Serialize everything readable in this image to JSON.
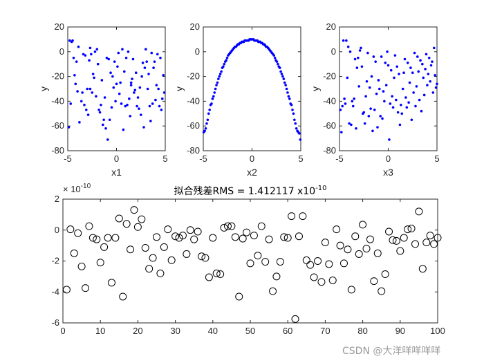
{
  "chart_data": [
    {
      "type": "scatter",
      "xlabel": "x1",
      "ylabel": "y",
      "xlim": [
        -5,
        5
      ],
      "ylim": [
        -80,
        20
      ],
      "xticks": [
        -5,
        0,
        5
      ],
      "yticks": [
        20,
        0,
        -20,
        -40,
        -60,
        -80
      ],
      "marker_color": "#0000ff",
      "x": [
        -4.9,
        -4.8,
        -4.7,
        -4.6,
        -4.5,
        -4.4,
        -4.3,
        -4.2,
        -4.1,
        -4.0,
        -3.9,
        -3.8,
        -3.6,
        -3.5,
        -3.4,
        -3.3,
        -3.2,
        -3.1,
        -3.0,
        -2.9,
        -2.8,
        -2.7,
        -2.6,
        -2.5,
        -2.4,
        -2.3,
        -2.2,
        -2.1,
        -2.0,
        -1.9,
        -1.8,
        -1.7,
        -1.6,
        -1.5,
        -1.4,
        -1.3,
        -1.2,
        -1.1,
        -1.0,
        -0.9,
        -0.8,
        -0.7,
        -0.6,
        -0.5,
        -0.4,
        -0.3,
        -0.2,
        -0.1,
        0.0,
        0.1,
        0.2,
        0.3,
        0.4,
        0.5,
        0.6,
        0.7,
        0.8,
        0.9,
        1.0,
        1.1,
        1.2,
        1.3,
        1.4,
        1.5,
        1.6,
        1.7,
        1.8,
        1.9,
        2.0,
        2.1,
        2.2,
        2.3,
        2.4,
        2.5,
        2.6,
        2.7,
        2.8,
        2.9,
        3.0,
        3.1,
        3.2,
        3.3,
        3.4,
        3.5,
        3.6,
        3.7,
        3.8,
        3.9,
        4.0,
        4.1,
        4.2,
        4.3,
        4.4,
        4.5,
        4.6,
        4.7,
        4.8,
        4.9,
        -2.7,
        1.5
      ],
      "y": [
        -61,
        9,
        -42,
        8,
        9,
        -5,
        -19,
        -26,
        -8,
        -32,
        4,
        -57,
        -40,
        -33,
        -2,
        -43,
        -3,
        -47,
        -30,
        -51,
        -7,
        3,
        -2,
        -33,
        -18,
        -21,
        0,
        -36,
        2,
        -10,
        -47,
        -49,
        -43,
        -23,
        -59,
        -55,
        -37,
        -62,
        -5,
        -71,
        -6,
        -55,
        -17,
        -45,
        -20,
        -29,
        -8,
        -40,
        -26,
        -12,
        -1,
        -34,
        -25,
        -42,
        2,
        -63,
        -16,
        -44,
        -5,
        -43,
        0,
        -38,
        -52,
        -25,
        -22,
        -6,
        -33,
        -31,
        -17,
        -44,
        -37,
        -46,
        -29,
        -51,
        -20,
        -9,
        -61,
        -13,
        2,
        -8,
        -30,
        -18,
        -44,
        -56,
        -1,
        -42,
        -13,
        -8,
        -39,
        -27,
        -2,
        -30,
        -44,
        -5,
        -47,
        -38,
        -19,
        -33,
        -30,
        -27
      ]
    },
    {
      "type": "scatter",
      "xlabel": "x2",
      "ylabel": "y",
      "xlim": [
        -5,
        5
      ],
      "ylim": [
        -80,
        20
      ],
      "xticks": [
        -5,
        0,
        5
      ],
      "yticks": [
        20,
        0,
        -20,
        -40,
        -60,
        -80
      ],
      "marker_color": "#0000ff",
      "x": [
        -4.95,
        -4.85,
        -4.75,
        -4.65,
        -4.55,
        -4.45,
        -4.35,
        -4.25,
        -4.15,
        -4.05,
        -3.95,
        -3.85,
        -3.75,
        -3.65,
        -3.55,
        -3.45,
        -3.35,
        -3.25,
        -3.15,
        -3.05,
        -2.95,
        -2.85,
        -2.75,
        -2.65,
        -2.55,
        -2.45,
        -2.35,
        -2.25,
        -2.15,
        -2.05,
        -1.95,
        -1.85,
        -1.75,
        -1.65,
        -1.55,
        -1.45,
        -1.35,
        -1.25,
        -1.15,
        -1.05,
        -0.95,
        -0.85,
        -0.75,
        -0.65,
        -0.55,
        -0.45,
        -0.35,
        -0.25,
        -0.15,
        -0.05,
        0.05,
        0.15,
        0.25,
        0.35,
        0.45,
        0.55,
        0.65,
        0.75,
        0.85,
        0.95,
        1.05,
        1.15,
        1.25,
        1.35,
        1.45,
        1.55,
        1.65,
        1.75,
        1.85,
        1.95,
        2.05,
        2.15,
        2.25,
        2.35,
        2.45,
        2.55,
        2.65,
        2.75,
        2.85,
        2.95,
        3.05,
        3.15,
        3.25,
        3.35,
        3.45,
        3.55,
        3.65,
        3.75,
        3.85,
        3.95,
        4.05,
        4.15,
        4.25,
        4.35,
        4.45,
        4.55,
        4.65,
        4.75,
        4.85,
        4.95
      ],
      "y": [
        -65,
        -64,
        -62,
        -58,
        -55,
        -50,
        -47,
        -43,
        -42,
        -38,
        -36,
        -33,
        -30,
        -27,
        -25,
        -22,
        -20,
        -18,
        -16,
        -13,
        -12,
        -10,
        -8,
        -7,
        -5,
        -3,
        -2,
        -1,
        0,
        1,
        2,
        3,
        4,
        4,
        5,
        6,
        6,
        7,
        7,
        8,
        8,
        8,
        9,
        9,
        9,
        9,
        9,
        10,
        10,
        10,
        10,
        10,
        9,
        9,
        9,
        9,
        8,
        8,
        8,
        7,
        7,
        6,
        6,
        5,
        4,
        4,
        3,
        2,
        1,
        0,
        -1,
        -2,
        -3,
        -5,
        -7,
        -8,
        -10,
        -12,
        -13,
        -16,
        -18,
        -20,
        -22,
        -25,
        -27,
        -30,
        -33,
        -36,
        -38,
        -42,
        -43,
        -47,
        -50,
        -55,
        -58,
        -62,
        -64,
        -65,
        -66,
        -71
      ]
    },
    {
      "type": "scatter",
      "xlabel": "x3",
      "ylabel": "y",
      "xlim": [
        -5,
        5
      ],
      "ylim": [
        -80,
        20
      ],
      "xticks": [
        -5,
        0,
        5
      ],
      "yticks": [
        20,
        0,
        -20,
        -40,
        -60,
        -80
      ],
      "marker_color": "#0000ff",
      "x": [
        -4.9,
        -4.8,
        -4.7,
        -4.6,
        -4.5,
        -4.4,
        -4.3,
        -4.2,
        -4.1,
        -4.0,
        -3.9,
        -3.8,
        -3.7,
        -3.6,
        -3.5,
        -3.4,
        -3.3,
        -3.2,
        -3.1,
        -3.0,
        -2.9,
        -2.8,
        -2.7,
        -2.6,
        -2.5,
        -2.4,
        -2.3,
        -2.2,
        -2.1,
        -2.0,
        -1.9,
        -1.8,
        -1.7,
        -1.6,
        -1.5,
        -1.4,
        -1.3,
        -1.2,
        -1.1,
        -1.0,
        -0.9,
        -0.8,
        -0.7,
        -0.6,
        -0.5,
        -0.4,
        -0.3,
        -0.2,
        -0.1,
        0.0,
        0.1,
        0.2,
        0.3,
        0.4,
        0.5,
        0.6,
        0.7,
        0.8,
        0.9,
        1.0,
        1.1,
        1.2,
        1.3,
        1.4,
        1.5,
        1.6,
        1.7,
        1.8,
        1.9,
        2.0,
        2.1,
        2.2,
        2.3,
        2.4,
        2.5,
        2.6,
        2.7,
        2.8,
        2.9,
        3.0,
        3.1,
        3.2,
        3.3,
        3.4,
        3.5,
        3.6,
        3.7,
        3.8,
        3.9,
        4.0,
        4.1,
        4.2,
        4.3,
        4.4,
        4.5,
        4.6,
        4.7,
        4.8,
        4.9,
        5.0
      ],
      "y": [
        -47,
        -65,
        -44,
        9,
        -38,
        -42,
        9,
        -21,
        4,
        -58,
        0,
        -59,
        -40,
        -44,
        -38,
        -6,
        -62,
        -13,
        -5,
        -28,
        1,
        3,
        -12,
        -50,
        -49,
        -58,
        -36,
        -24,
        -1,
        -52,
        -29,
        -46,
        -20,
        -64,
        -4,
        -47,
        -8,
        -34,
        -61,
        -23,
        -30,
        -52,
        -4,
        -54,
        -32,
        -40,
        -9,
        -27,
        0,
        -11,
        -71,
        -42,
        -15,
        -36,
        -45,
        -21,
        -3,
        -39,
        -12,
        -49,
        -18,
        -59,
        -43,
        -50,
        -30,
        -17,
        -6,
        -37,
        -45,
        -9,
        -41,
        -25,
        -13,
        -55,
        -17,
        -33,
        -1,
        -44,
        -28,
        -4,
        -16,
        -39,
        -7,
        -48,
        -10,
        -21,
        -35,
        -14,
        -2,
        -27,
        -18,
        -5,
        -24,
        -11,
        -8,
        -33,
        3,
        -19,
        -29,
        -26
      ]
    },
    {
      "type": "scatter",
      "title": "拟合残差RMS = 1.412117 x10",
      "title_exponent": "-10",
      "axis_exponent_base": "× 10",
      "axis_exponent": "-10",
      "xlim": [
        0,
        100
      ],
      "ylim": [
        -6,
        2
      ],
      "xticks": [
        0,
        10,
        20,
        30,
        40,
        50,
        60,
        70,
        80,
        90,
        100
      ],
      "yticks": [
        2,
        0,
        -2,
        -4,
        -6
      ],
      "marker": "open-circle",
      "marker_color": "#000000",
      "x": [
        1,
        2,
        3,
        4,
        5,
        6,
        7,
        8,
        9,
        10,
        11,
        12,
        13,
        14,
        15,
        16,
        17,
        18,
        19,
        20,
        21,
        22,
        23,
        24,
        25,
        26,
        27,
        28,
        29,
        30,
        31,
        32,
        33,
        34,
        35,
        36,
        37,
        38,
        39,
        40,
        41,
        42,
        43,
        44,
        45,
        46,
        47,
        48,
        49,
        50,
        51,
        52,
        53,
        54,
        55,
        56,
        57,
        58,
        59,
        60,
        61,
        62,
        63,
        64,
        65,
        66,
        67,
        68,
        69,
        70,
        71,
        72,
        73,
        74,
        75,
        76,
        77,
        78,
        79,
        80,
        81,
        82,
        83,
        84,
        85,
        86,
        87,
        88,
        89,
        90,
        91,
        92,
        93,
        94,
        95,
        96,
        97,
        98,
        99,
        100
      ],
      "y": [
        -3.85,
        0.05,
        -1.5,
        -0.2,
        -2.35,
        -3.75,
        0.25,
        -0.5,
        -0.6,
        -2.1,
        -1.1,
        -0.5,
        -3.4,
        -0.5,
        0.75,
        -4.3,
        0.4,
        -1.25,
        1.3,
        0.2,
        0.7,
        -1.15,
        -2.5,
        -1.8,
        -0.45,
        -2.8,
        -1.1,
        0.05,
        -1.95,
        -0.4,
        -0.5,
        -0.35,
        -1.55,
        0.0,
        -0.6,
        -0.1,
        -1.7,
        -1.8,
        -3.05,
        -0.5,
        -2.8,
        -2.85,
        0.15,
        0.25,
        0.25,
        -0.45,
        -4.3,
        -0.55,
        -0.15,
        -2.15,
        -0.35,
        -1.65,
        0.25,
        -2.05,
        -0.6,
        -3.95,
        -3.0,
        -2.05,
        -0.45,
        -0.5,
        0.9,
        -5.75,
        -0.4,
        0.9,
        -1.95,
        -2.25,
        -3.05,
        -2.0,
        -3.35,
        -0.8,
        -2.2,
        -3.25,
        0.05,
        -1.0,
        -2.15,
        -1.25,
        -3.85,
        -0.4,
        -1.55,
        0.35,
        -1.2,
        -0.6,
        -3.3,
        -1.5,
        -3.95,
        -2.85,
        -0.1,
        -0.65,
        -0.7,
        -1.35,
        -0.5,
        0.05,
        0.1,
        -0.9,
        1.2,
        -2.5,
        -0.8,
        -0.35,
        -0.9,
        -0.5
      ]
    }
  ],
  "watermark": "CSDN @大洋咩咩咩咩"
}
